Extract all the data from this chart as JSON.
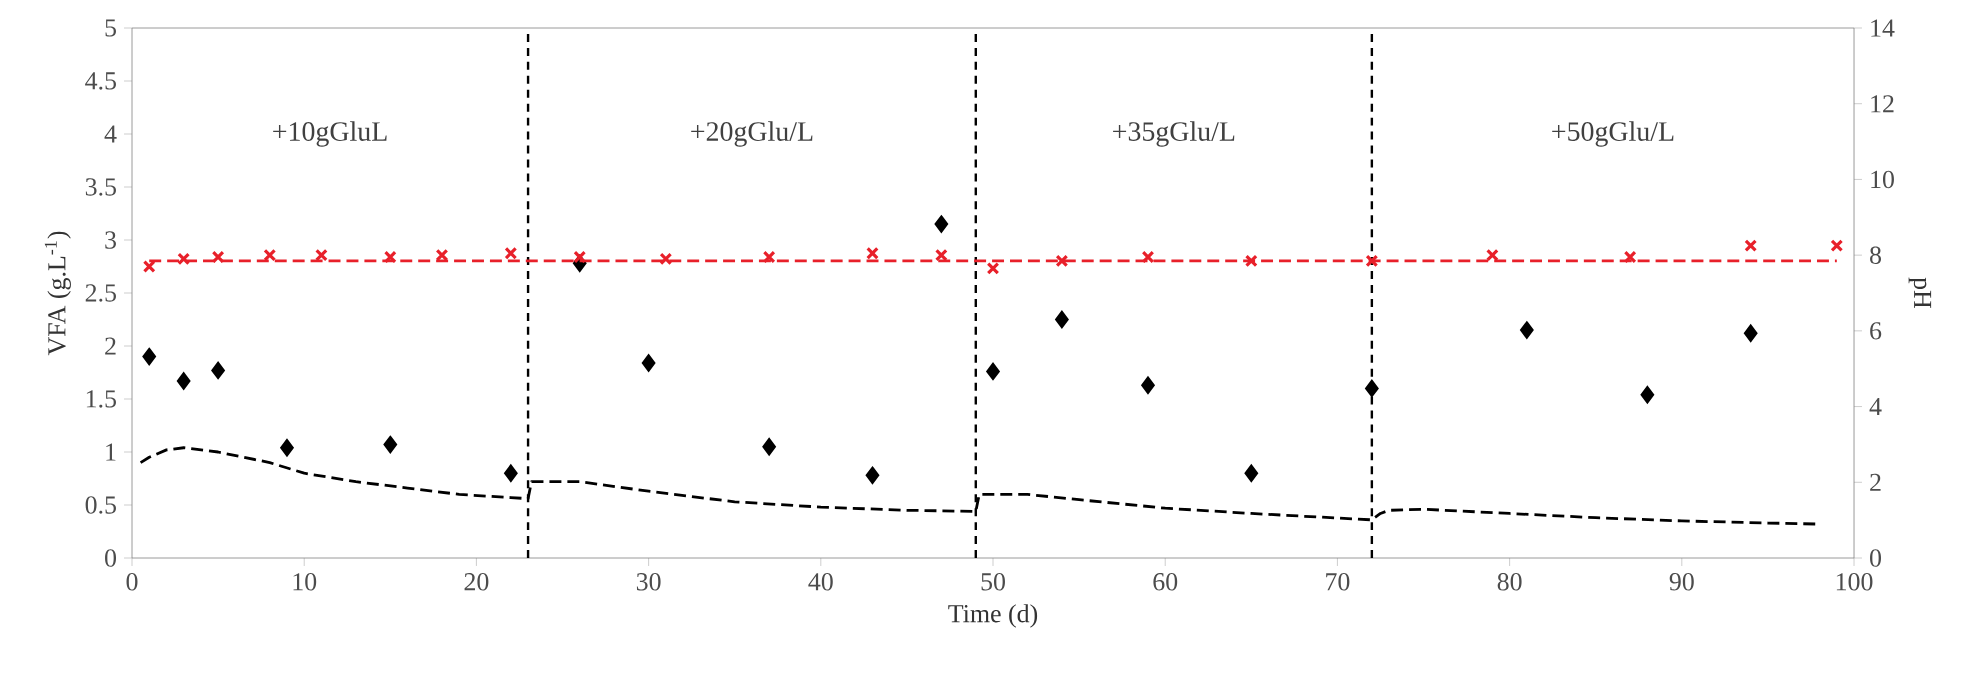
{
  "chart_data": {
    "type": "scatter",
    "xlabel": "Time (d)",
    "ylabel": "VFA (g.L$^{-1}$)",
    "y2label": "pH",
    "xlim": [
      0,
      100
    ],
    "xticks": [
      0,
      10,
      20,
      30,
      40,
      50,
      60,
      70,
      80,
      90,
      100
    ],
    "ylim": [
      0,
      5
    ],
    "yticks": [
      0,
      0.5,
      1,
      1.5,
      2,
      2.5,
      3,
      3.5,
      4,
      4.5,
      5
    ],
    "y2lim": [
      0,
      14
    ],
    "y2ticks": [
      0,
      2,
      4,
      6,
      8,
      10,
      12,
      14
    ],
    "grid": false,
    "series": [
      {
        "marker": "diamond",
        "color": "#000000",
        "x": [
          1,
          3,
          5,
          9,
          15,
          22,
          26,
          30,
          37,
          43,
          47,
          50,
          54,
          59,
          65,
          72,
          81,
          88,
          94
        ],
        "values": [
          1.9,
          1.67,
          1.77,
          1.04,
          1.07,
          0.8,
          2.78,
          1.84,
          1.05,
          0.78,
          3.15,
          1.76,
          2.25,
          1.63,
          0.8,
          1.6,
          2.15,
          1.54,
          2.12
        ]
      },
      {
        "type": "line",
        "line_style": "dashed",
        "color": "#000000",
        "x": [
          0.5,
          1,
          2,
          3,
          5,
          8,
          10,
          13,
          16,
          19,
          22,
          23,
          23.2,
          26,
          30,
          35,
          40,
          45,
          49,
          49.2,
          52,
          55,
          60,
          65,
          72,
          72.5,
          73,
          75,
          80,
          85,
          90,
          95,
          98
        ],
        "values": [
          0.9,
          0.95,
          1.02,
          1.04,
          1.0,
          0.9,
          0.8,
          0.72,
          0.66,
          0.6,
          0.57,
          0.56,
          0.72,
          0.72,
          0.63,
          0.53,
          0.48,
          0.45,
          0.44,
          0.6,
          0.6,
          0.55,
          0.47,
          0.42,
          0.36,
          0.42,
          0.45,
          0.46,
          0.42,
          0.38,
          0.35,
          0.33,
          0.32
        ]
      },
      {
        "type": "scatter",
        "marker": "cross",
        "color": "#e8202a",
        "axis": "y2",
        "x": [
          1,
          3,
          5,
          8,
          11,
          15,
          18,
          22,
          26,
          31,
          37,
          43,
          47,
          50,
          54,
          59,
          65,
          72,
          79,
          87,
          94,
          99
        ],
        "values": [
          7.7,
          7.9,
          7.95,
          8.0,
          8.0,
          7.95,
          8.0,
          8.05,
          7.95,
          7.9,
          7.95,
          8.05,
          8.0,
          7.65,
          7.85,
          7.95,
          7.85,
          7.85,
          8.0,
          7.95,
          8.25,
          8.25
        ]
      },
      {
        "type": "line",
        "line_style": "dashed",
        "color": "#e8202a",
        "axis": "y2",
        "x": [
          1,
          99
        ],
        "values": [
          7.85,
          7.85
        ]
      }
    ],
    "ref_lines": [
      {
        "axis": "x",
        "value": 23,
        "line_style": "dashed",
        "color": "#000000"
      },
      {
        "axis": "x",
        "value": 49,
        "line_style": "dashed",
        "color": "#000000"
      },
      {
        "axis": "x",
        "value": 72,
        "line_style": "dashed",
        "color": "#000000"
      }
    ],
    "annotations": [
      "+10gGluL",
      "+20gGlu/L",
      "+35gGlu/L",
      "+50gGlu/L"
    ]
  }
}
